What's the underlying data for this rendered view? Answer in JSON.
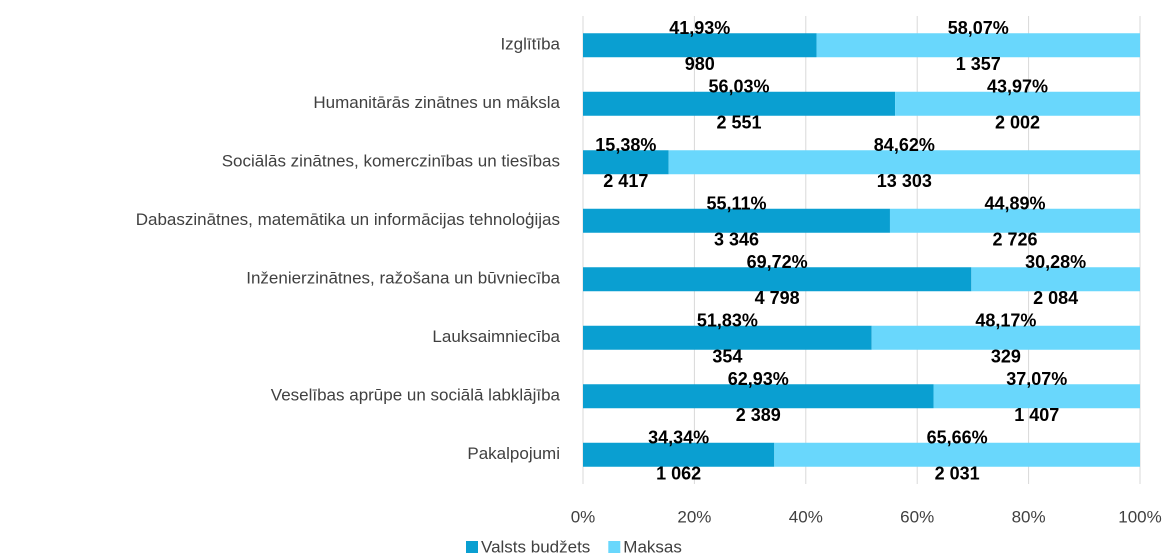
{
  "chart_data": {
    "type": "bar100h",
    "categories": [
      "Izglītība",
      "Humanitārās zinātnes un māksla",
      "Sociālās zinātnes, komerczinības un tiesības",
      "Dabaszinātnes, matemātika un informācijas tehnoloģijas",
      "Inženierzinātnes, ražošana un būvniecība",
      "Lauksaimniecība",
      "Veselības aprūpe un sociālā labklājība",
      "Pakalpojumi"
    ],
    "series": [
      {
        "name": "Valsts budžets",
        "color": "#0a9fd1",
        "values": [
          41.93,
          56.03,
          15.38,
          55.11,
          69.72,
          51.83,
          62.93,
          34.34
        ],
        "value_labels": [
          "41,93%",
          "56,03%",
          "15,38%",
          "55,11%",
          "69,72%",
          "51,83%",
          "62,93%",
          "34,34%"
        ],
        "counts": [
          "980",
          "2 551",
          "2 417",
          "3 346",
          "4 798",
          "354",
          "2 389",
          "1 062"
        ]
      },
      {
        "name": "Maksas",
        "color": "#69d7fc",
        "values": [
          58.07,
          43.97,
          84.62,
          44.89,
          30.28,
          48.17,
          37.07,
          65.66
        ],
        "value_labels": [
          "58,07%",
          "43,97%",
          "84,62%",
          "44,89%",
          "30,28%",
          "48,17%",
          "37,07%",
          "65,66%"
        ],
        "counts": [
          "1 357",
          "2 002",
          "13 303",
          "2 726",
          "2 084",
          "329",
          "1 407",
          "2 031"
        ]
      }
    ],
    "xlim": [
      0,
      100
    ],
    "xticks": [
      {
        "value": 0,
        "label": "0%"
      },
      {
        "value": 20,
        "label": "20%"
      },
      {
        "value": 40,
        "label": "40%"
      },
      {
        "value": 60,
        "label": "60%"
      },
      {
        "value": 80,
        "label": "80%"
      },
      {
        "value": 100,
        "label": "100%"
      }
    ],
    "grid": true
  }
}
